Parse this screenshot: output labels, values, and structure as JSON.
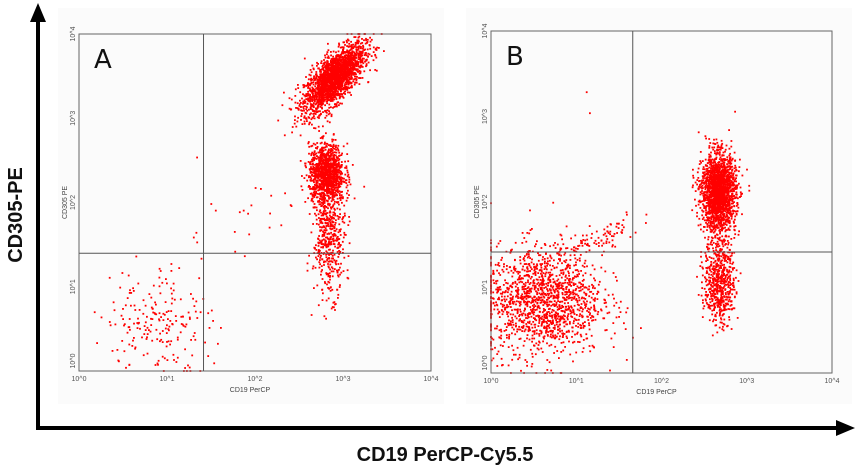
{
  "figure": {
    "y_axis_title": "CD305-PE",
    "x_axis_title": "CD19 PerCP-Cy5.5"
  },
  "chart_data": [
    {
      "type": "scatter",
      "panel_label": "A",
      "xlabel": "CD19 PerCP",
      "ylabel": "CD305 PE",
      "x_scale": "log",
      "y_scale": "log",
      "xlim": [
        1,
        10000
      ],
      "ylim": [
        1,
        10000
      ],
      "tick_labels": [
        "10^0",
        "10^1",
        "10^2",
        "10^3",
        "10^4"
      ],
      "quadrant_gate": {
        "x": 26,
        "y": 25
      },
      "marker_color": "#ff0000",
      "populations": [
        {
          "center": [
            800,
            3000
          ],
          "log_spread": [
            0.17,
            0.2
          ],
          "correlation": 0.7,
          "count": 2200
        },
        {
          "center": [
            650,
            220
          ],
          "log_spread": [
            0.1,
            0.17
          ],
          "correlation": 0.0,
          "count": 1100
        },
        {
          "center": [
            700,
            40
          ],
          "log_spread": [
            0.09,
            0.35
          ],
          "correlation": 0.0,
          "count": 500
        },
        {
          "center": [
            8,
            4
          ],
          "log_spread": [
            0.3,
            0.32
          ],
          "correlation": 0.0,
          "count": 200
        },
        {
          "center": [
            60,
            60
          ],
          "log_spread": [
            0.35,
            0.3
          ],
          "correlation": 0.3,
          "count": 25
        }
      ]
    },
    {
      "type": "scatter",
      "panel_label": "B",
      "xlabel": "CD19 PerCP",
      "ylabel": "CD305 PE",
      "x_scale": "log",
      "y_scale": "log",
      "xlim": [
        1,
        10000
      ],
      "ylim": [
        1,
        10000
      ],
      "tick_labels": [
        "10^0",
        "10^1",
        "10^2",
        "10^3",
        "10^4"
      ],
      "quadrant_gate": {
        "x": 46,
        "y": 26
      },
      "marker_color": "#ff0000",
      "populations": [
        {
          "center": [
            470,
            130
          ],
          "log_spread": [
            0.1,
            0.22
          ],
          "correlation": 0.0,
          "count": 2000
        },
        {
          "center": [
            480,
            12
          ],
          "log_spread": [
            0.09,
            0.25
          ],
          "correlation": 0.0,
          "count": 600
        },
        {
          "center": [
            4,
            7
          ],
          "log_spread": [
            0.35,
            0.32
          ],
          "correlation": 0.0,
          "count": 1500
        },
        {
          "center": [
            18,
            35
          ],
          "log_spread": [
            0.25,
            0.15
          ],
          "correlation": 0.8,
          "count": 90
        },
        {
          "center": [
            14,
            3000
          ],
          "log_spread": [
            0.02,
            0.3
          ],
          "correlation": 0.0,
          "count": 2
        }
      ]
    }
  ]
}
